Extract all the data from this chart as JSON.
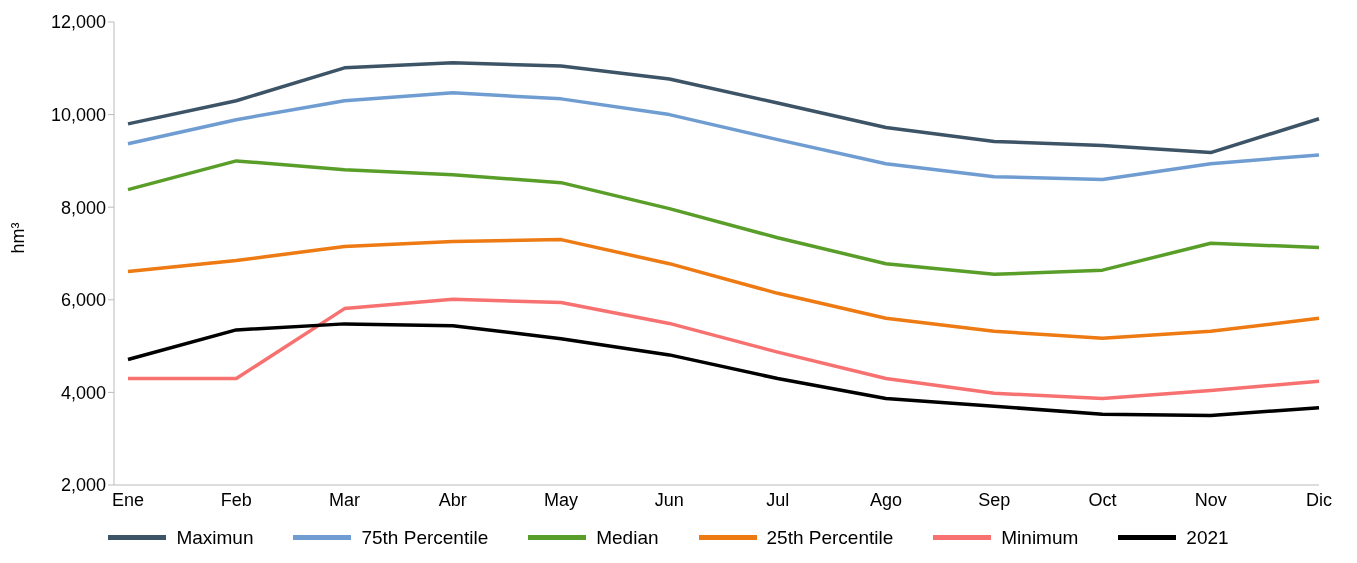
{
  "chart_data": {
    "type": "line",
    "ylabel": "hm³",
    "categories": [
      "Ene",
      "Feb",
      "Mar",
      "Abr",
      "May",
      "Jun",
      "Jul",
      "Ago",
      "Sep",
      "Oct",
      "Nov",
      "Dic"
    ],
    "series": [
      {
        "name": "Maximun",
        "color": "#3d5366",
        "values": [
          9800,
          10300,
          11010,
          11120,
          11050,
          10770,
          10250,
          9720,
          9420,
          9330,
          9180,
          9910
        ]
      },
      {
        "name": "75th Percentile",
        "color": "#6f9dd1",
        "values": [
          9370,
          9890,
          10300,
          10470,
          10340,
          10000,
          9460,
          8940,
          8660,
          8600,
          8940,
          9130
        ]
      },
      {
        "name": "Median",
        "color": "#5a9e2a",
        "values": [
          8380,
          9000,
          8810,
          8700,
          8530,
          7970,
          7340,
          6780,
          6550,
          6640,
          7220,
          7130
        ]
      },
      {
        "name": "25th Percentile",
        "color": "#ed7a12",
        "values": [
          6610,
          6850,
          7150,
          7260,
          7300,
          6780,
          6140,
          5600,
          5320,
          5170,
          5320,
          5600
        ]
      },
      {
        "name": "Minimum",
        "color": "#f87171",
        "values": [
          4300,
          4300,
          5810,
          6010,
          5940,
          5490,
          4870,
          4300,
          3980,
          3870,
          4040,
          4240
        ]
      },
      {
        "name": "2021",
        "color": "#000000",
        "values": [
          4710,
          5350,
          5480,
          5440,
          5160,
          4810,
          4300,
          3870,
          3700,
          3530,
          3500,
          3670
        ]
      }
    ],
    "ylim": [
      2000,
      12000
    ],
    "yticks": [
      {
        "value": 2000,
        "label": "2,000"
      },
      {
        "value": 4000,
        "label": "4,000"
      },
      {
        "value": 6000,
        "label": "6,000"
      },
      {
        "value": 8000,
        "label": "8,000"
      },
      {
        "value": 10000,
        "label": "10,000"
      },
      {
        "value": 12000,
        "label": "12,000"
      }
    ],
    "grid": false,
    "legend": "bottom",
    "marker": "none",
    "line_style": "solid"
  }
}
